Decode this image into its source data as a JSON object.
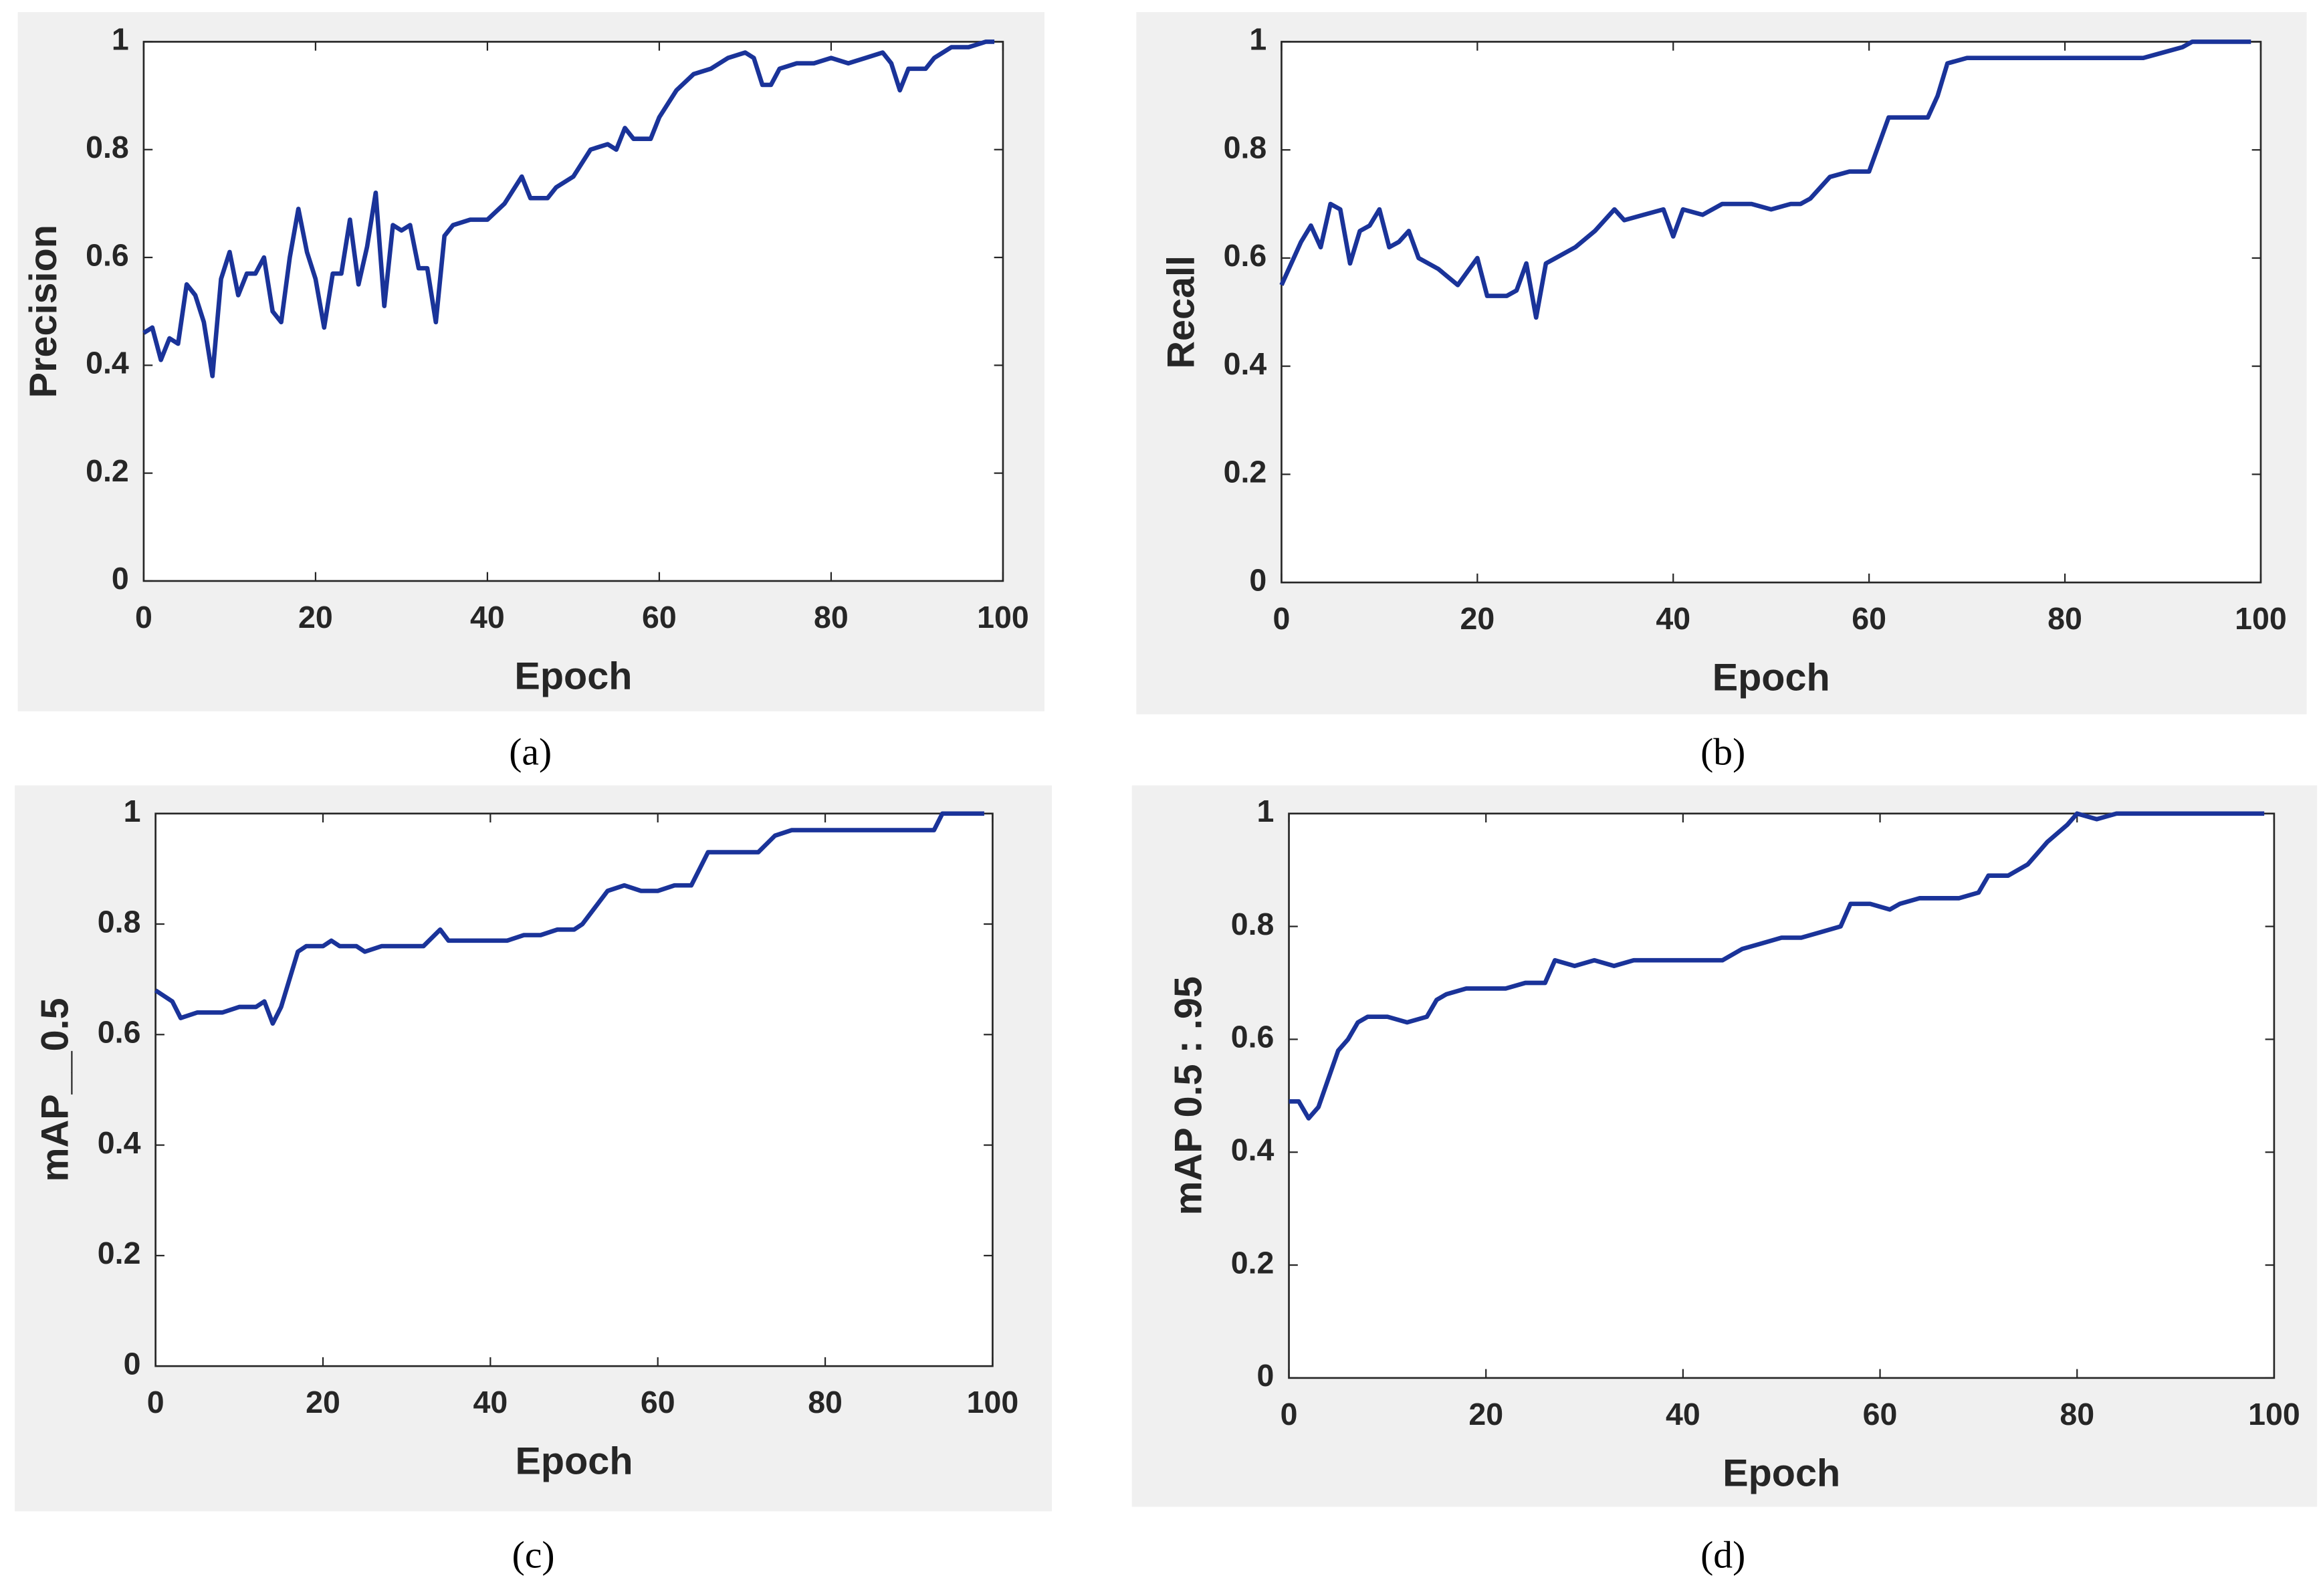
{
  "chart_data": [
    {
      "type": "line",
      "caption": "(a)",
      "x_label": "Epoch",
      "y_label": "Precision",
      "xlim": [
        0,
        100
      ],
      "ylim": [
        0,
        1
      ],
      "xticks": [
        0,
        20,
        40,
        60,
        80,
        100
      ],
      "yticks": [
        0,
        0.2,
        0.4,
        0.6,
        0.8,
        1
      ],
      "series": [
        {
          "color": "#1a3399",
          "x": [
            0,
            1,
            2,
            3,
            4,
            5,
            6,
            7,
            8,
            9,
            10,
            11,
            12,
            13,
            14,
            15,
            16,
            17,
            18,
            19,
            20,
            21,
            22,
            23,
            24,
            25,
            26,
            27,
            28,
            29,
            30,
            31,
            32,
            33,
            34,
            35,
            36,
            38,
            40,
            42,
            44,
            45,
            47,
            48,
            50,
            52,
            54,
            55,
            56,
            57,
            59,
            60,
            62,
            64,
            66,
            68,
            70,
            71,
            72,
            73,
            74,
            76,
            78,
            80,
            82,
            84,
            86,
            87,
            88,
            89,
            91,
            92,
            94,
            96,
            98,
            99
          ],
          "values": [
            0.46,
            0.47,
            0.41,
            0.45,
            0.44,
            0.55,
            0.53,
            0.48,
            0.38,
            0.56,
            0.61,
            0.53,
            0.57,
            0.57,
            0.6,
            0.5,
            0.48,
            0.6,
            0.69,
            0.61,
            0.56,
            0.47,
            0.57,
            0.57,
            0.67,
            0.55,
            0.62,
            0.72,
            0.51,
            0.66,
            0.65,
            0.66,
            0.58,
            0.58,
            0.48,
            0.64,
            0.66,
            0.67,
            0.67,
            0.7,
            0.75,
            0.71,
            0.71,
            0.73,
            0.75,
            0.8,
            0.81,
            0.8,
            0.84,
            0.82,
            0.82,
            0.86,
            0.91,
            0.94,
            0.95,
            0.97,
            0.98,
            0.97,
            0.92,
            0.92,
            0.95,
            0.96,
            0.96,
            0.97,
            0.96,
            0.97,
            0.98,
            0.96,
            0.91,
            0.95,
            0.95,
            0.97,
            0.99,
            0.99,
            1,
            1
          ]
        }
      ]
    },
    {
      "type": "line",
      "caption": "(b)",
      "x_label": "Epoch",
      "y_label": "Recall",
      "xlim": [
        0,
        100
      ],
      "ylim": [
        0,
        1
      ],
      "xticks": [
        0,
        20,
        40,
        60,
        80,
        100
      ],
      "yticks": [
        0,
        0.2,
        0.4,
        0.6,
        0.8,
        1
      ],
      "series": [
        {
          "color": "#1a3399",
          "x": [
            0,
            1,
            2,
            3,
            4,
            5,
            6,
            7,
            8,
            9,
            10,
            11,
            12,
            13,
            14,
            16,
            18,
            20,
            21,
            23,
            24,
            25,
            26,
            27,
            28,
            30,
            32,
            34,
            35,
            37,
            39,
            40,
            41,
            43,
            45,
            48,
            50,
            52,
            53,
            54,
            56,
            58,
            60,
            62,
            64,
            66,
            67,
            68,
            70,
            75,
            78,
            80,
            83,
            85,
            88,
            90,
            92,
            93,
            95,
            99
          ],
          "values": [
            0.55,
            0.59,
            0.63,
            0.66,
            0.62,
            0.7,
            0.69,
            0.59,
            0.65,
            0.66,
            0.69,
            0.62,
            0.63,
            0.65,
            0.6,
            0.58,
            0.55,
            0.6,
            0.53,
            0.53,
            0.54,
            0.59,
            0.49,
            0.59,
            0.6,
            0.62,
            0.65,
            0.69,
            0.67,
            0.68,
            0.69,
            0.64,
            0.69,
            0.68,
            0.7,
            0.7,
            0.69,
            0.7,
            0.7,
            0.71,
            0.75,
            0.76,
            0.76,
            0.86,
            0.86,
            0.86,
            0.9,
            0.96,
            0.97,
            0.97,
            0.97,
            0.97,
            0.97,
            0.97,
            0.97,
            0.98,
            0.99,
            1,
            1,
            1
          ]
        }
      ]
    },
    {
      "type": "line",
      "caption": "(c)",
      "x_label": "Epoch",
      "y_label": "mAP__0.5",
      "xlim": [
        0,
        100
      ],
      "ylim": [
        0,
        1
      ],
      "xticks": [
        0,
        20,
        40,
        60,
        80,
        100
      ],
      "yticks": [
        0,
        0.2,
        0.4,
        0.6,
        0.8,
        1
      ],
      "series": [
        {
          "color": "#1a3399",
          "x": [
            0,
            1,
            2,
            3,
            5,
            6,
            8,
            10,
            12,
            13,
            14,
            15,
            16,
            17,
            18,
            20,
            21,
            22,
            24,
            25,
            27,
            30,
            32,
            34,
            35,
            38,
            40,
            42,
            44,
            46,
            48,
            50,
            51,
            53,
            54,
            56,
            58,
            60,
            62,
            64,
            66,
            68,
            70,
            72,
            74,
            76,
            80,
            85,
            90,
            93,
            94,
            96,
            99
          ],
          "values": [
            0.68,
            0.67,
            0.66,
            0.63,
            0.64,
            0.64,
            0.64,
            0.65,
            0.65,
            0.66,
            0.62,
            0.65,
            0.7,
            0.75,
            0.76,
            0.76,
            0.77,
            0.76,
            0.76,
            0.75,
            0.76,
            0.76,
            0.76,
            0.79,
            0.77,
            0.77,
            0.77,
            0.77,
            0.78,
            0.78,
            0.79,
            0.79,
            0.8,
            0.84,
            0.86,
            0.87,
            0.86,
            0.86,
            0.87,
            0.87,
            0.93,
            0.93,
            0.93,
            0.93,
            0.96,
            0.97,
            0.97,
            0.97,
            0.97,
            0.97,
            1,
            1,
            1
          ]
        }
      ]
    },
    {
      "type": "line",
      "caption": "(d)",
      "x_label": "Epoch",
      "y_label": "mAP 0.5 : .95",
      "xlim": [
        0,
        100
      ],
      "ylim": [
        0,
        1
      ],
      "xticks": [
        0,
        20,
        40,
        60,
        80,
        100
      ],
      "yticks": [
        0,
        0.2,
        0.4,
        0.6,
        0.8,
        1
      ],
      "series": [
        {
          "color": "#1a3399",
          "x": [
            0,
            1,
            2,
            3,
            4,
            5,
            6,
            7,
            8,
            10,
            12,
            14,
            15,
            16,
            18,
            20,
            22,
            24,
            26,
            27,
            29,
            31,
            33,
            35,
            38,
            40,
            42,
            44,
            46,
            48,
            50,
            52,
            54,
            56,
            57,
            59,
            61,
            62,
            64,
            66,
            68,
            70,
            71,
            73,
            75,
            77,
            79,
            80,
            82,
            84,
            86,
            90,
            95,
            99
          ],
          "values": [
            0.49,
            0.49,
            0.46,
            0.48,
            0.53,
            0.58,
            0.6,
            0.63,
            0.64,
            0.64,
            0.63,
            0.64,
            0.67,
            0.68,
            0.69,
            0.69,
            0.69,
            0.7,
            0.7,
            0.74,
            0.73,
            0.74,
            0.73,
            0.74,
            0.74,
            0.74,
            0.74,
            0.74,
            0.76,
            0.77,
            0.78,
            0.78,
            0.79,
            0.8,
            0.84,
            0.84,
            0.83,
            0.84,
            0.85,
            0.85,
            0.85,
            0.86,
            0.89,
            0.89,
            0.91,
            0.95,
            0.98,
            1,
            0.99,
            1,
            1,
            1,
            1,
            1
          ]
        }
      ]
    }
  ]
}
